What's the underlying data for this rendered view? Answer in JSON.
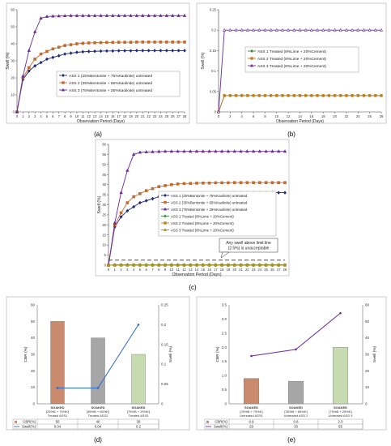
{
  "chart_data": [
    {
      "panel": "a",
      "type": "line",
      "xlabel": "Observation Period (Days)",
      "ylabel": "Swell (%)",
      "xlim": [
        0,
        28
      ],
      "ylim": [
        0,
        60
      ],
      "xticks": [
        0,
        1,
        2,
        3,
        4,
        5,
        6,
        7,
        8,
        9,
        10,
        11,
        12,
        13,
        14,
        15,
        16,
        17,
        18,
        19,
        20,
        21,
        22,
        23,
        24,
        25,
        26,
        27,
        28
      ],
      "yticks": [
        0,
        10,
        20,
        30,
        40,
        50,
        60
      ],
      "grid": false,
      "legend_position": "center-left",
      "x": [
        0,
        1,
        2,
        3,
        4,
        5,
        6,
        7,
        8,
        9,
        10,
        11,
        12,
        13,
        14,
        15,
        16,
        17,
        18,
        19,
        20,
        21,
        22,
        23,
        24,
        25,
        26,
        27,
        28
      ],
      "series": [
        {
          "name": "ASS 1 (25%Bentonite + 75%Kaolinite) untreated",
          "color": "#1f2a7a",
          "marker": "diamond",
          "values": [
            0,
            19,
            24,
            27,
            29,
            31,
            32,
            33,
            34,
            34.5,
            35,
            35.3,
            35.5,
            35.6,
            35.7,
            35.8,
            35.8,
            35.9,
            35.9,
            35.9,
            36,
            36,
            36,
            36,
            36,
            36,
            36,
            36,
            36
          ]
        },
        {
          "name": "ASS 2 (35%Bentonite + 65%Kaolinite) untreated",
          "color": "#c46a2e",
          "marker": "square",
          "values": [
            0,
            20,
            26,
            31,
            34,
            35.5,
            37,
            38,
            39,
            39.5,
            40,
            40.3,
            40.5,
            40.6,
            40.7,
            40.8,
            40.8,
            40.9,
            40.9,
            40.9,
            41,
            41,
            41,
            41,
            41,
            41,
            41,
            41,
            41
          ]
        },
        {
          "name": "ASS 3 (75%Bentonite + 25%Kaolinite) untreated",
          "color": "#6a2a9a",
          "marker": "triangle",
          "values": [
            0,
            21,
            36,
            47,
            55,
            56,
            56.2,
            56.3,
            56.4,
            56.5,
            56.5,
            56.5,
            56.5,
            56.5,
            56.5,
            56.5,
            56.5,
            56.5,
            56.5,
            56.5,
            56.5,
            56.5,
            56.5,
            56.5,
            56.5,
            56.5,
            56.5,
            56.5,
            56.5
          ]
        }
      ]
    },
    {
      "panel": "b",
      "type": "line",
      "xlabel": "Observation Period (Days)",
      "ylabel": "Swell (%)",
      "xlim": [
        0,
        28
      ],
      "ylim": [
        0,
        0.25
      ],
      "xticks": [
        0,
        2,
        4,
        6,
        8,
        10,
        12,
        14,
        16,
        18,
        20,
        22,
        24,
        26,
        28
      ],
      "yticks": [
        0,
        0.05,
        0.1,
        0.15,
        0.2,
        0.25
      ],
      "grid": false,
      "legend_position": "center-right",
      "x": [
        0,
        1,
        2,
        3,
        4,
        5,
        6,
        7,
        8,
        9,
        10,
        11,
        12,
        13,
        14,
        15,
        16,
        17,
        18,
        19,
        20,
        21,
        22,
        23,
        24,
        25,
        26,
        27,
        28
      ],
      "series": [
        {
          "name": "ASS 1 Treated (8%Lime + 20%Cement)",
          "color": "#3a8a3a",
          "marker": "diamond",
          "values": [
            0,
            0.04,
            0.04,
            0.04,
            0.04,
            0.04,
            0.04,
            0.04,
            0.04,
            0.04,
            0.04,
            0.04,
            0.04,
            0.04,
            0.04,
            0.04,
            0.04,
            0.04,
            0.04,
            0.04,
            0.04,
            0.04,
            0.04,
            0.04,
            0.04,
            0.04,
            0.04,
            0.04,
            0.04
          ]
        },
        {
          "name": "ASS 2 Treated (8%Lime + 20%Cement)",
          "color": "#c08020",
          "marker": "square",
          "values": [
            0,
            0.04,
            0.04,
            0.04,
            0.04,
            0.04,
            0.04,
            0.04,
            0.04,
            0.04,
            0.04,
            0.04,
            0.04,
            0.04,
            0.04,
            0.04,
            0.04,
            0.04,
            0.04,
            0.04,
            0.04,
            0.04,
            0.04,
            0.04,
            0.04,
            0.04,
            0.04,
            0.04,
            0.04
          ]
        },
        {
          "name": "ASS 3 Treated (8%Lime + 20%Cement)",
          "color": "#6a2a9a",
          "marker": "triangle",
          "values": [
            0,
            0.2,
            0.2,
            0.2,
            0.2,
            0.2,
            0.2,
            0.2,
            0.2,
            0.2,
            0.2,
            0.2,
            0.2,
            0.2,
            0.2,
            0.2,
            0.2,
            0.2,
            0.2,
            0.2,
            0.2,
            0.2,
            0.2,
            0.2,
            0.2,
            0.2,
            0.2,
            0.2,
            0.2
          ]
        }
      ]
    },
    {
      "panel": "c",
      "type": "line",
      "xlabel": "Observation Period (Days)",
      "ylabel": "Swell (%)",
      "xlim": [
        0,
        28
      ],
      "ylim": [
        0,
        60
      ],
      "xticks": [
        0,
        1,
        2,
        3,
        4,
        5,
        6,
        7,
        8,
        9,
        10,
        11,
        12,
        13,
        14,
        15,
        16,
        17,
        18,
        19,
        20,
        21,
        22,
        23,
        24,
        25,
        26,
        27,
        28
      ],
      "yticks": [
        0,
        5,
        10,
        15,
        20,
        25,
        30,
        35,
        40,
        45,
        50,
        55,
        60
      ],
      "grid": false,
      "legend_position": "center-right",
      "annotation": "Any swell above limit line (2.5%) is unacceptable",
      "limit_line": 2.5,
      "x": [
        0,
        1,
        2,
        3,
        4,
        5,
        6,
        7,
        8,
        9,
        10,
        11,
        12,
        13,
        14,
        15,
        16,
        17,
        18,
        19,
        20,
        21,
        22,
        23,
        24,
        25,
        26,
        27,
        28
      ],
      "series": [
        {
          "name": "ASS 1 (25%Bentonite + 75%Kaolinite) untreated",
          "color": "#1f2a7a",
          "marker": "diamond",
          "values": [
            0,
            19,
            24,
            27,
            29,
            31,
            32,
            33,
            34,
            34.5,
            35,
            35.3,
            35.5,
            35.6,
            35.7,
            35.8,
            35.8,
            35.9,
            35.9,
            35.9,
            36,
            36,
            36,
            36,
            36,
            36,
            36,
            36,
            36
          ]
        },
        {
          "name": "ASS 2 (35%Bentonite + 65%Kaolinite) untreated",
          "color": "#c46a2e",
          "marker": "square",
          "values": [
            0,
            20,
            26,
            31,
            34,
            35.5,
            37,
            38,
            39,
            39.5,
            40,
            40.3,
            40.5,
            40.6,
            40.7,
            40.8,
            40.8,
            40.9,
            40.9,
            40.9,
            41,
            41,
            41,
            41,
            41,
            41,
            41,
            41,
            41
          ]
        },
        {
          "name": "ASS 3 (75%Bentonite + 25%Kaolinite) untreated",
          "color": "#6a2a9a",
          "marker": "triangle",
          "values": [
            0,
            21,
            36,
            47,
            55,
            56,
            56.2,
            56.3,
            56.4,
            56.5,
            56.5,
            56.5,
            56.5,
            56.5,
            56.5,
            56.5,
            56.5,
            56.5,
            56.5,
            56.5,
            56.5,
            56.5,
            56.5,
            56.5,
            56.5,
            56.5,
            56.5,
            56.5,
            56.5
          ]
        },
        {
          "name": "ASS 1 Treated (8%Lime + 20%Cement)",
          "color": "#3a8a3a",
          "marker": "diamond",
          "values": [
            0,
            0.04,
            0.04,
            0.04,
            0.04,
            0.04,
            0.04,
            0.04,
            0.04,
            0.04,
            0.04,
            0.04,
            0.04,
            0.04,
            0.04,
            0.04,
            0.04,
            0.04,
            0.04,
            0.04,
            0.04,
            0.04,
            0.04,
            0.04,
            0.04,
            0.04,
            0.04,
            0.04,
            0.04
          ]
        },
        {
          "name": "ASS 2 Treated (8%Lime + 20%Cement)",
          "color": "#c08020",
          "marker": "square",
          "values": [
            0,
            0.04,
            0.04,
            0.04,
            0.04,
            0.04,
            0.04,
            0.04,
            0.04,
            0.04,
            0.04,
            0.04,
            0.04,
            0.04,
            0.04,
            0.04,
            0.04,
            0.04,
            0.04,
            0.04,
            0.04,
            0.04,
            0.04,
            0.04,
            0.04,
            0.04,
            0.04,
            0.04,
            0.04
          ]
        },
        {
          "name": "ASS 3 Treated (8%Lime + 20%Cement)",
          "color": "#9a9a2a",
          "marker": "triangle",
          "values": [
            0,
            0.2,
            0.2,
            0.2,
            0.2,
            0.2,
            0.2,
            0.2,
            0.2,
            0.2,
            0.2,
            0.2,
            0.2,
            0.2,
            0.2,
            0.2,
            0.2,
            0.2,
            0.2,
            0.2,
            0.2,
            0.2,
            0.2,
            0.2,
            0.2,
            0.2,
            0.2,
            0.2,
            0.2
          ]
        }
      ]
    },
    {
      "panel": "d",
      "type": "bar",
      "ylabel": "CBR (%)",
      "y2label": "Swell (%)",
      "ylim": [
        0,
        60
      ],
      "y2lim": [
        0,
        0.25
      ],
      "yticks": [
        0,
        10,
        20,
        30,
        40,
        50,
        60
      ],
      "y2ticks": [
        0,
        0.05,
        0.1,
        0.15,
        0.2,
        0.25
      ],
      "categories": [
        {
          "line1": "SOAKED",
          "line2": "[25%B + 75%K]",
          "line3": "Treated ASS1"
        },
        {
          "line1": "SOAKED",
          "line2": "[35%B + 65%K]",
          "line3": "Treated ASS2"
        },
        {
          "line1": "SOAKED",
          "line2": "[75%B + 25%K]",
          "line3": "Treated ASS3"
        }
      ],
      "bar_colors": [
        "#c98a6e",
        "#a6a6a6",
        "#c7dbb0"
      ],
      "series": [
        {
          "name": "CBR(%)",
          "kind": "bar",
          "values": [
            50,
            40,
            30
          ],
          "labels": [
            "50",
            "40",
            "30"
          ]
        },
        {
          "name": "Swell(%)",
          "kind": "line",
          "axis": "right",
          "color": "#2a6ac8",
          "values": [
            0.04,
            0.04,
            0.2
          ],
          "labels": [
            "0.04",
            "0.04",
            "0.2"
          ]
        }
      ]
    },
    {
      "panel": "e",
      "type": "bar",
      "ylabel": "CBR (%)",
      "y2label": "Swell (%)",
      "ylim": [
        0,
        3.5
      ],
      "y2lim": [
        0,
        60
      ],
      "yticks": [
        0,
        0.5,
        1.0,
        1.5,
        2.0,
        2.5,
        3.0,
        3.5
      ],
      "ytick_labels": [
        "0",
        "0.5",
        "1.0",
        "1.5",
        "2.0",
        "2.5",
        "3.0",
        "3.5"
      ],
      "y2ticks": [
        0,
        10,
        20,
        30,
        40,
        50,
        60
      ],
      "categories": [
        {
          "line1": "SOAKED",
          "line2": "[25%B + 75%K]",
          "line3": "Untreated ASS1"
        },
        {
          "line1": "SOAKED",
          "line2": "[35%B + 65%K]",
          "line3": "Untreated ASS 2"
        },
        {
          "line1": "SOAKED",
          "line2": "[75%B + 25%K]",
          "line3": "Untreated ASS 3"
        }
      ],
      "bar_colors": [
        "#c98a6e",
        "#a6a6a6",
        "#c7dbb0"
      ],
      "series": [
        {
          "name": "CBR(%)",
          "kind": "bar",
          "values": [
            0.9,
            0.8,
            2.0
          ],
          "labels": [
            "0.9",
            "0.8",
            "2.0"
          ]
        },
        {
          "name": "Swell(%)",
          "kind": "line",
          "axis": "right",
          "color": "#6a2a9a",
          "values": [
            29,
            33,
            55
          ],
          "labels": [
            "29",
            "33",
            "55"
          ]
        }
      ]
    }
  ],
  "panel_labels": {
    "a": "(a)",
    "b": "(b)",
    "c": "(c)",
    "d": "(d)",
    "e": "(e)"
  }
}
